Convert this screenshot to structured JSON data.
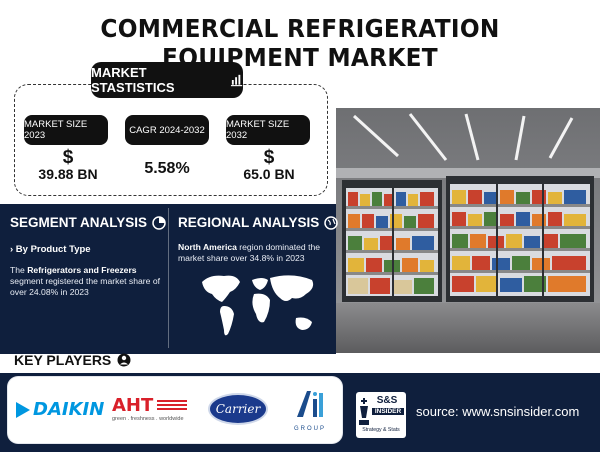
{
  "title": "COMMERCIAL REFRIGERATION EQUIPMENT MARKET",
  "market_statistics": {
    "label": "MARKET STASTISTICS",
    "items": [
      {
        "label": "MARKET SIZE 2023",
        "symbol": "$",
        "value": "39.88 BN"
      },
      {
        "label": "CAGR 2024-2032",
        "symbol": "",
        "value": "5.58%"
      },
      {
        "label": "MARKET SIZE 2032",
        "symbol": "$",
        "value": "65.0 BN"
      }
    ]
  },
  "segment": {
    "title": "SEGMENT ANALYSIS",
    "subhead": "› By Product Type",
    "text_bold": "Refrigerators and Freezers",
    "text_pre": "The ",
    "text_post": " segment registered the market share of over 24.08% in 2023"
  },
  "regional": {
    "title": "REGIONAL ANALYSIS",
    "text_bold": "North America",
    "text_post": " region dominated the market share over 34.8% in 2023"
  },
  "key_players": {
    "title": "KEY PLAYERS",
    "logos": [
      {
        "name": "DAIKIN",
        "color": "#0097e0"
      },
      {
        "name": "AHT",
        "tagline": "green . freshness . worldwide",
        "color": "#d9202a"
      },
      {
        "name": "Carrier",
        "color": "#1b3a8c"
      },
      {
        "name": "GROUP",
        "color": "#1b4c8c"
      }
    ]
  },
  "sns": {
    "top": "S&S",
    "middle": "INSIDER",
    "bottom": "Strategy & Stats"
  },
  "source": "source: www.snsinsider.com",
  "colors": {
    "navy": "#0f1f3d",
    "black": "#111111"
  }
}
